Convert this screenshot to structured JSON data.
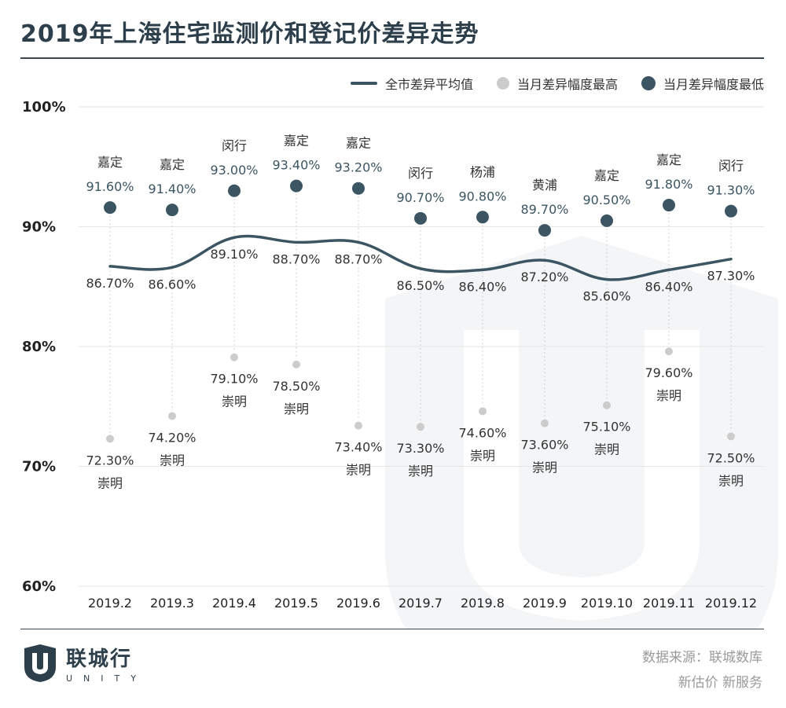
{
  "title": "2019年上海住宅监测价和登记价差异走势",
  "legend": {
    "avg": "全市差异平均值",
    "high": "当月差异幅度最高",
    "low": "当月差异幅度最低"
  },
  "colors": {
    "dark": "#3b5563",
    "light": "#cccccc",
    "title": "#2e3f4c"
  },
  "chart_data": {
    "type": "line",
    "title": "2019年上海住宅监测价和登记价差异走势",
    "categories": [
      "2019.2",
      "2019.3",
      "2019.4",
      "2019.5",
      "2019.6",
      "2019.7",
      "2019.8",
      "2019.9",
      "2019.10",
      "2019.11",
      "2019.12"
    ],
    "ylim": [
      60,
      100
    ],
    "yticks": [
      "60%",
      "70%",
      "80%",
      "90%",
      "100%"
    ],
    "ytick_values": [
      60,
      70,
      80,
      90,
      100
    ],
    "grid": true,
    "legend_position": "top-right",
    "series": [
      {
        "name": "全市差异平均值",
        "type": "line",
        "values": [
          86.7,
          86.6,
          89.1,
          88.7,
          88.7,
          86.5,
          86.4,
          87.2,
          85.6,
          86.4,
          87.3
        ],
        "labels": [
          "86.70%",
          "86.60%",
          "89.10%",
          "88.70%",
          "88.70%",
          "86.50%",
          "86.40%",
          "87.20%",
          "85.60%",
          "86.40%",
          "87.30%"
        ]
      },
      {
        "name": "当月差异幅度最高",
        "type": "scatter",
        "values": [
          72.3,
          74.2,
          79.1,
          78.5,
          73.4,
          73.3,
          74.6,
          73.6,
          75.1,
          79.6,
          72.5
        ],
        "labels": [
          "72.30%",
          "74.20%",
          "79.10%",
          "78.50%",
          "73.40%",
          "73.30%",
          "74.60%",
          "73.60%",
          "75.10%",
          "79.60%",
          "72.50%"
        ],
        "districts": [
          "崇明",
          "崇明",
          "崇明",
          "崇明",
          "崇明",
          "崇明",
          "崇明",
          "崇明",
          "崇明",
          "崇明",
          "崇明"
        ]
      },
      {
        "name": "当月差异幅度最低",
        "type": "scatter",
        "values": [
          91.6,
          91.4,
          93.0,
          93.4,
          93.2,
          90.7,
          90.8,
          89.7,
          90.5,
          91.8,
          91.3
        ],
        "labels": [
          "91.60%",
          "91.40%",
          "93.00%",
          "93.40%",
          "93.20%",
          "90.70%",
          "90.80%",
          "89.70%",
          "90.50%",
          "91.80%",
          "91.30%"
        ],
        "districts": [
          "嘉定",
          "嘉定",
          "闵行",
          "嘉定",
          "嘉定",
          "闵行",
          "杨浦",
          "黄浦",
          "嘉定",
          "嘉定",
          "闵行"
        ]
      }
    ]
  },
  "footer": {
    "brand_name": "联城行",
    "brand_sub": "UNITY",
    "source": "数据来源：联城数库",
    "slogan": "新估价 新服务"
  }
}
